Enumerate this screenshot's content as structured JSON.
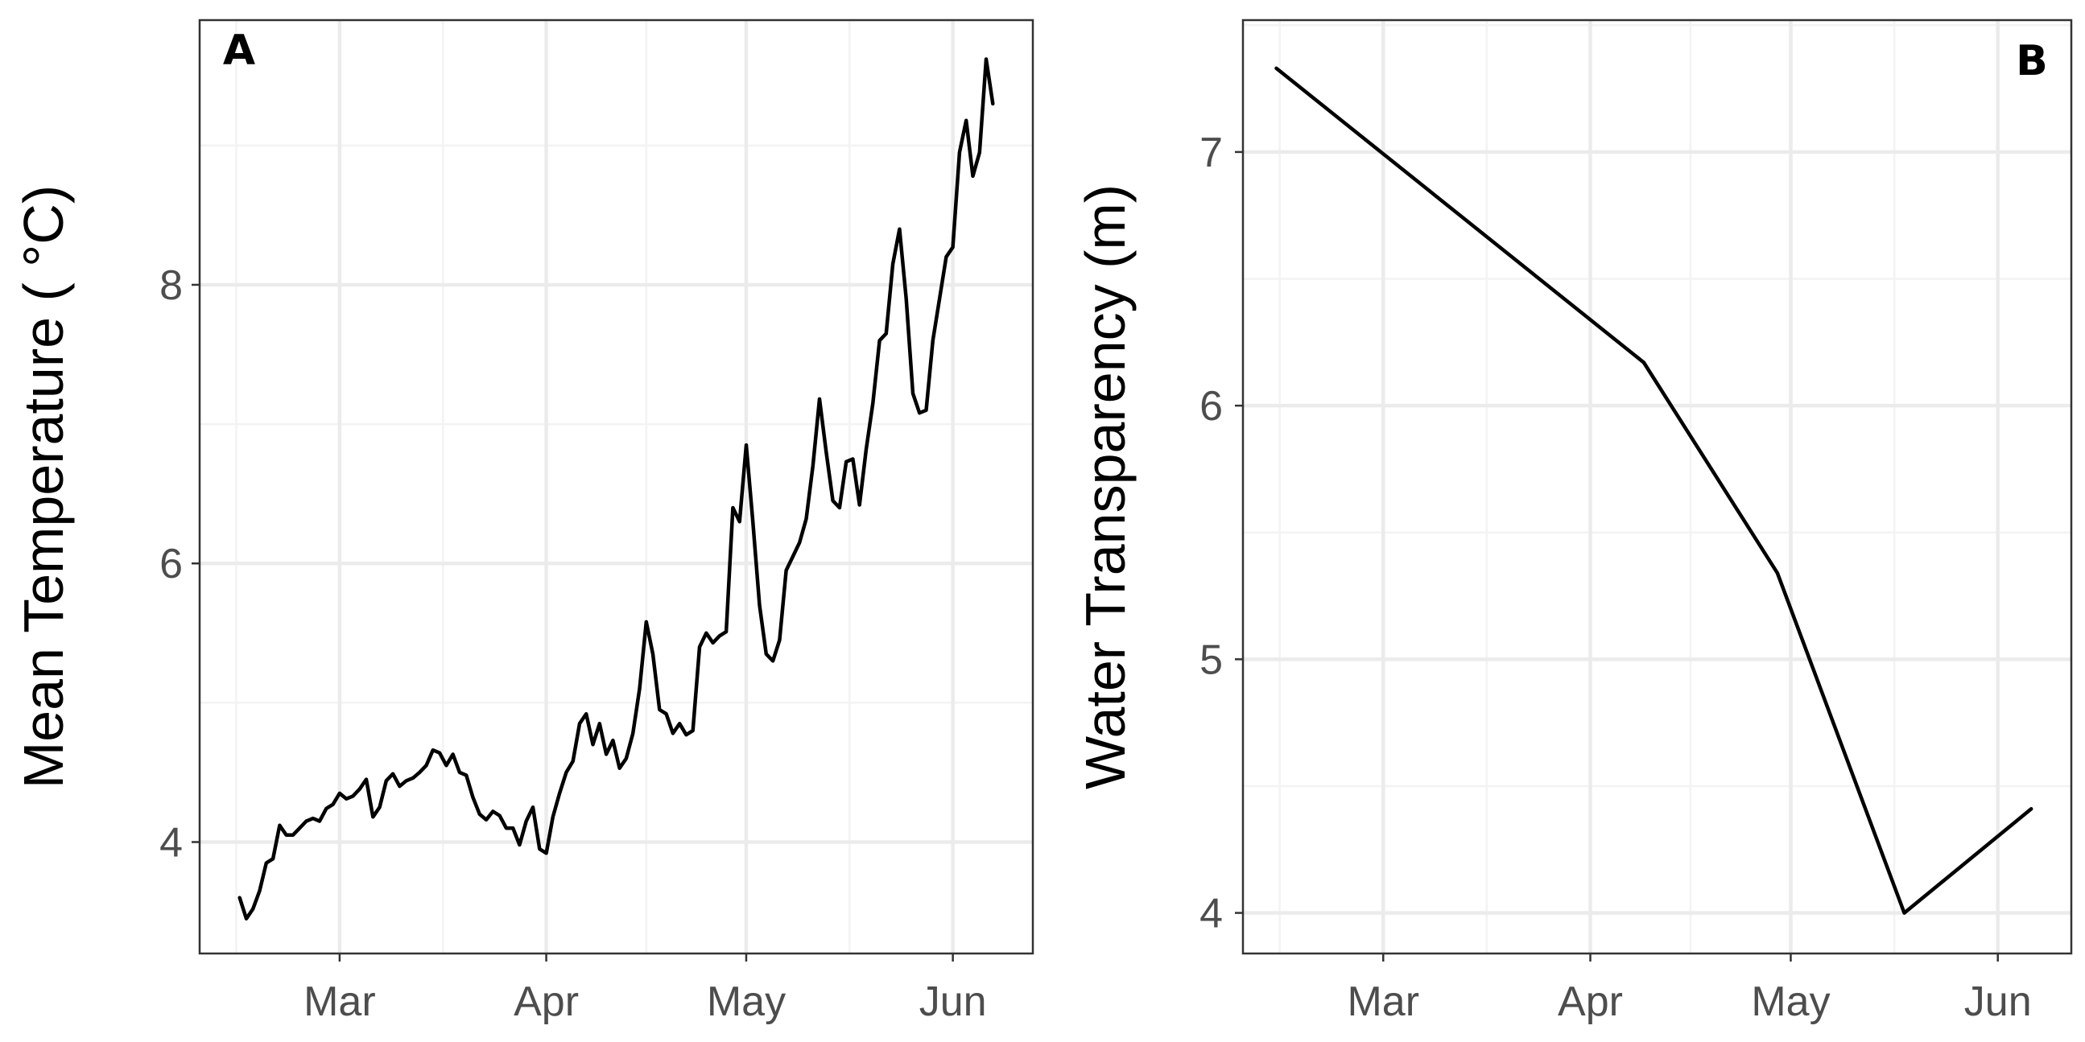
{
  "chart_data": [
    {
      "panel": "A",
      "type": "line",
      "title": "",
      "xlabel": "",
      "ylabel": "Mean Temperature ( °C)",
      "x_ticks": [
        {
          "date": "2021-03-01",
          "label": "Mar"
        },
        {
          "date": "2021-04-01",
          "label": "Apr"
        },
        {
          "date": "2021-05-01",
          "label": "May"
        },
        {
          "date": "2021-06-01",
          "label": "Jun"
        }
      ],
      "y_ticks": [
        4,
        6,
        8
      ],
      "xlim": [
        "2021-02-08",
        "2021-06-13"
      ],
      "ylim": [
        3.2,
        9.9
      ],
      "grid": true,
      "series": [
        {
          "color": "#000000",
          "points": [
            [
              "2021-02-14",
              3.6
            ],
            [
              "2021-02-15",
              3.45
            ],
            [
              "2021-02-16",
              3.52
            ],
            [
              "2021-02-17",
              3.65
            ],
            [
              "2021-02-18",
              3.85
            ],
            [
              "2021-02-19",
              3.88
            ],
            [
              "2021-02-20",
              4.12
            ],
            [
              "2021-02-21",
              4.05
            ],
            [
              "2021-02-22",
              4.05
            ],
            [
              "2021-02-23",
              4.1
            ],
            [
              "2021-02-24",
              4.15
            ],
            [
              "2021-02-25",
              4.17
            ],
            [
              "2021-02-26",
              4.15
            ],
            [
              "2021-02-27",
              4.24
            ],
            [
              "2021-02-28",
              4.27
            ],
            [
              "2021-03-01",
              4.35
            ],
            [
              "2021-03-02",
              4.31
            ],
            [
              "2021-03-03",
              4.33
            ],
            [
              "2021-03-04",
              4.38
            ],
            [
              "2021-03-05",
              4.45
            ],
            [
              "2021-03-06",
              4.18
            ],
            [
              "2021-03-07",
              4.25
            ],
            [
              "2021-03-08",
              4.44
            ],
            [
              "2021-03-09",
              4.49
            ],
            [
              "2021-03-10",
              4.4
            ],
            [
              "2021-03-11",
              4.44
            ],
            [
              "2021-03-12",
              4.46
            ],
            [
              "2021-03-13",
              4.5
            ],
            [
              "2021-03-14",
              4.55
            ],
            [
              "2021-03-15",
              4.66
            ],
            [
              "2021-03-16",
              4.64
            ],
            [
              "2021-03-17",
              4.55
            ],
            [
              "2021-03-18",
              4.63
            ],
            [
              "2021-03-19",
              4.5
            ],
            [
              "2021-03-20",
              4.48
            ],
            [
              "2021-03-21",
              4.32
            ],
            [
              "2021-03-22",
              4.2
            ],
            [
              "2021-03-23",
              4.16
            ],
            [
              "2021-03-24",
              4.22
            ],
            [
              "2021-03-25",
              4.19
            ],
            [
              "2021-03-26",
              4.1
            ],
            [
              "2021-03-27",
              4.1
            ],
            [
              "2021-03-28",
              3.98
            ],
            [
              "2021-03-29",
              4.15
            ],
            [
              "2021-03-30",
              4.25
            ],
            [
              "2021-03-31",
              3.95
            ],
            [
              "2021-04-01",
              3.92
            ],
            [
              "2021-04-02",
              4.18
            ],
            [
              "2021-04-03",
              4.35
            ],
            [
              "2021-04-04",
              4.5
            ],
            [
              "2021-04-05",
              4.58
            ],
            [
              "2021-04-06",
              4.85
            ],
            [
              "2021-04-07",
              4.92
            ],
            [
              "2021-04-08",
              4.7
            ],
            [
              "2021-04-09",
              4.85
            ],
            [
              "2021-04-10",
              4.63
            ],
            [
              "2021-04-11",
              4.73
            ],
            [
              "2021-04-12",
              4.53
            ],
            [
              "2021-04-13",
              4.6
            ],
            [
              "2021-04-14",
              4.78
            ],
            [
              "2021-04-15",
              5.1
            ],
            [
              "2021-04-16",
              5.58
            ],
            [
              "2021-04-17",
              5.35
            ],
            [
              "2021-04-18",
              4.95
            ],
            [
              "2021-04-19",
              4.92
            ],
            [
              "2021-04-20",
              4.78
            ],
            [
              "2021-04-21",
              4.85
            ],
            [
              "2021-04-22",
              4.77
            ],
            [
              "2021-04-23",
              4.8
            ],
            [
              "2021-04-24",
              5.4
            ],
            [
              "2021-04-25",
              5.5
            ],
            [
              "2021-04-26",
              5.43
            ],
            [
              "2021-04-27",
              5.48
            ],
            [
              "2021-04-28",
              5.51
            ],
            [
              "2021-04-29",
              6.4
            ],
            [
              "2021-04-30",
              6.3
            ],
            [
              "2021-05-01",
              6.85
            ],
            [
              "2021-05-02",
              6.3
            ],
            [
              "2021-05-03",
              5.7
            ],
            [
              "2021-05-04",
              5.35
            ],
            [
              "2021-05-05",
              5.3
            ],
            [
              "2021-05-06",
              5.45
            ],
            [
              "2021-05-07",
              5.95
            ],
            [
              "2021-05-08",
              6.05
            ],
            [
              "2021-05-09",
              6.15
            ],
            [
              "2021-05-10",
              6.32
            ],
            [
              "2021-05-11",
              6.7
            ],
            [
              "2021-05-12",
              7.18
            ],
            [
              "2021-05-13",
              6.8
            ],
            [
              "2021-05-14",
              6.45
            ],
            [
              "2021-05-15",
              6.4
            ],
            [
              "2021-05-16",
              6.73
            ],
            [
              "2021-05-17",
              6.75
            ],
            [
              "2021-05-18",
              6.42
            ],
            [
              "2021-05-19",
              6.82
            ],
            [
              "2021-05-20",
              7.15
            ],
            [
              "2021-05-21",
              7.6
            ],
            [
              "2021-05-22",
              7.65
            ],
            [
              "2021-05-23",
              8.15
            ],
            [
              "2021-05-24",
              8.4
            ],
            [
              "2021-05-25",
              7.9
            ],
            [
              "2021-05-26",
              7.22
            ],
            [
              "2021-05-27",
              7.08
            ],
            [
              "2021-05-28",
              7.1
            ],
            [
              "2021-05-29",
              7.6
            ],
            [
              "2021-05-30",
              7.9
            ],
            [
              "2021-05-31",
              8.2
            ],
            [
              "2021-06-01",
              8.27
            ],
            [
              "2021-06-02",
              8.95
            ],
            [
              "2021-06-03",
              9.18
            ],
            [
              "2021-06-04",
              8.78
            ],
            [
              "2021-06-05",
              8.95
            ],
            [
              "2021-06-06",
              9.62
            ],
            [
              "2021-06-07",
              9.3
            ]
          ]
        }
      ],
      "panel_label": "A"
    },
    {
      "panel": "B",
      "type": "line",
      "title": "",
      "xlabel": "",
      "ylabel": "Water Transparency (m)",
      "x_ticks": [
        {
          "date": "2021-03-01",
          "label": "Mar"
        },
        {
          "date": "2021-04-01",
          "label": "Apr"
        },
        {
          "date": "2021-05-01",
          "label": "May"
        },
        {
          "date": "2021-06-01",
          "label": "Jun"
        }
      ],
      "y_ticks": [
        4,
        5,
        6,
        7
      ],
      "xlim": [
        "2021-02-08",
        "2021-06-12"
      ],
      "ylim": [
        3.84,
        7.52
      ],
      "grid": true,
      "series": [
        {
          "color": "#000000",
          "points": [
            [
              "2021-02-13",
              7.33
            ],
            [
              "2021-04-09",
              6.17
            ],
            [
              "2021-04-29",
              5.34
            ],
            [
              "2021-05-18",
              4.0
            ],
            [
              "2021-06-06",
              4.41
            ]
          ]
        }
      ],
      "panel_label": "B"
    }
  ]
}
